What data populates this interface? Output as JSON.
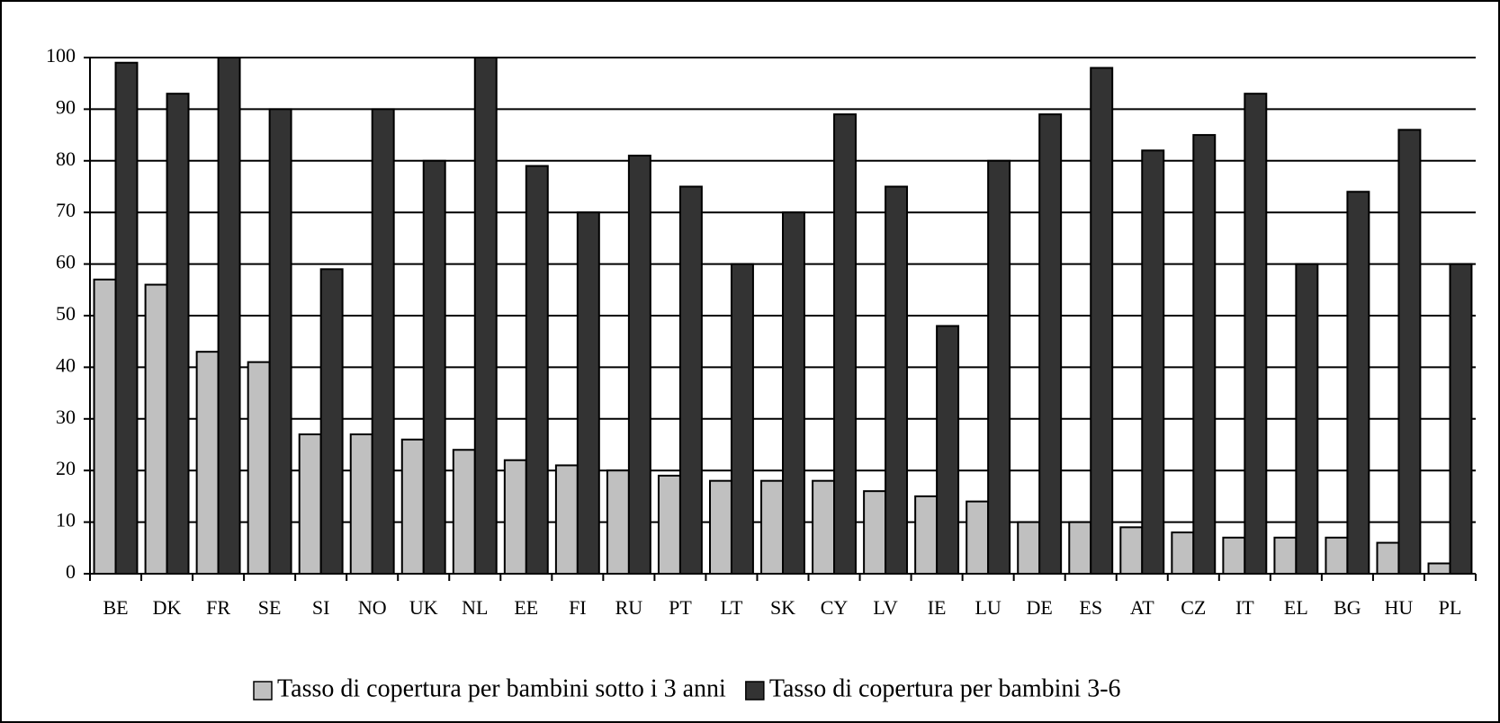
{
  "chart_data": {
    "type": "bar",
    "categories": [
      "BE",
      "DK",
      "FR",
      "SE",
      "SI",
      "NO",
      "UK",
      "NL",
      "EE",
      "FI",
      "RU",
      "PT",
      "LT",
      "SK",
      "CY",
      "LV",
      "IE",
      "LU",
      "DE",
      "ES",
      "AT",
      "CZ",
      "IT",
      "EL",
      "BG",
      "HU",
      "PL"
    ],
    "series": [
      {
        "name": "Tasso di copertura per bambini sotto i 3 anni",
        "color": "#c0c0c0",
        "values": [
          57,
          56,
          43,
          41,
          27,
          27,
          26,
          24,
          22,
          21,
          20,
          19,
          18,
          18,
          18,
          16,
          15,
          14,
          10,
          10,
          9,
          8,
          7,
          7,
          7,
          6,
          2
        ]
      },
      {
        "name": "Tasso di copertura per bambini 3-6",
        "color": "#333333",
        "values": [
          99,
          93,
          100,
          90,
          59,
          90,
          80,
          100,
          79,
          70,
          81,
          75,
          60,
          70,
          89,
          75,
          48,
          80,
          89,
          98,
          82,
          85,
          93,
          60,
          74,
          86,
          60
        ]
      }
    ],
    "ylim": [
      0,
      100
    ],
    "yticks": [
      0,
      10,
      20,
      30,
      40,
      50,
      60,
      70,
      80,
      90,
      100
    ],
    "grid": true,
    "legend": "bottom"
  }
}
